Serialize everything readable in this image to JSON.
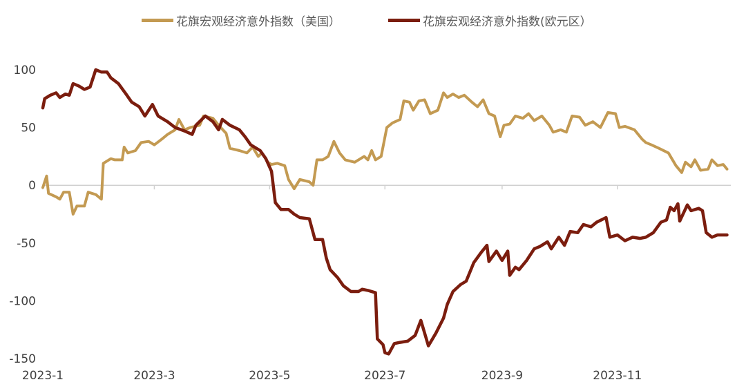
{
  "chart_data": {
    "type": "line",
    "title": "",
    "xlabel": "",
    "ylabel": "",
    "x_range": [
      "2023-01-01",
      "2023-12-31"
    ],
    "ylim": [
      -150,
      100
    ],
    "y_ticks": [
      100,
      50,
      0,
      -50,
      -100,
      -150
    ],
    "y_tick_labels": [
      "100",
      "50",
      "0",
      "-50",
      "-100",
      "-150"
    ],
    "x_ticks": [
      "2023-01-01",
      "2023-03-01",
      "2023-05-01",
      "2023-07-01",
      "2023-09-01",
      "2023-11-01"
    ],
    "x_tick_labels": [
      "2023-1",
      "2023-3",
      "2023-5",
      "2023-7",
      "2023-9",
      "2023-11"
    ],
    "grid": false,
    "legend_position": "top",
    "series": [
      {
        "name": "花旗宏观经济意外指数（美国）",
        "color": "#C39A52",
        "points": [
          [
            "2023-01-01",
            -2
          ],
          [
            "2023-01-03",
            8
          ],
          [
            "2023-01-04",
            -7
          ],
          [
            "2023-01-08",
            -10
          ],
          [
            "2023-01-10",
            -12
          ],
          [
            "2023-01-12",
            -6
          ],
          [
            "2023-01-15",
            -6
          ],
          [
            "2023-01-17",
            -25
          ],
          [
            "2023-01-19",
            -18
          ],
          [
            "2023-01-23",
            -18
          ],
          [
            "2023-01-25",
            -6
          ],
          [
            "2023-01-29",
            -8
          ],
          [
            "2023-02-01",
            -12
          ],
          [
            "2023-02-02",
            19
          ],
          [
            "2023-02-06",
            23
          ],
          [
            "2023-02-08",
            22
          ],
          [
            "2023-02-12",
            22
          ],
          [
            "2023-02-13",
            33
          ],
          [
            "2023-02-15",
            28
          ],
          [
            "2023-02-19",
            30
          ],
          [
            "2023-02-22",
            37
          ],
          [
            "2023-02-26",
            38
          ],
          [
            "2023-03-01",
            35
          ],
          [
            "2023-03-05",
            40
          ],
          [
            "2023-03-08",
            44
          ],
          [
            "2023-03-12",
            48
          ],
          [
            "2023-03-14",
            57
          ],
          [
            "2023-03-17",
            48
          ],
          [
            "2023-03-20",
            50
          ],
          [
            "2023-03-25",
            52
          ],
          [
            "2023-03-27",
            60
          ],
          [
            "2023-04-01",
            58
          ],
          [
            "2023-04-04",
            52
          ],
          [
            "2023-04-08",
            45
          ],
          [
            "2023-04-10",
            32
          ],
          [
            "2023-04-15",
            30
          ],
          [
            "2023-04-19",
            28
          ],
          [
            "2023-04-22",
            33
          ],
          [
            "2023-04-25",
            25
          ],
          [
            "2023-04-27",
            28
          ],
          [
            "2023-04-30",
            20
          ],
          [
            "2023-05-02",
            18
          ],
          [
            "2023-05-05",
            19
          ],
          [
            "2023-05-09",
            17
          ],
          [
            "2023-05-11",
            5
          ],
          [
            "2023-05-14",
            -3
          ],
          [
            "2023-05-17",
            5
          ],
          [
            "2023-05-22",
            3
          ],
          [
            "2023-05-24",
            0
          ],
          [
            "2023-05-26",
            22
          ],
          [
            "2023-05-29",
            22
          ],
          [
            "2023-06-01",
            25
          ],
          [
            "2023-06-04",
            38
          ],
          [
            "2023-06-07",
            28
          ],
          [
            "2023-06-10",
            22
          ],
          [
            "2023-06-15",
            20
          ],
          [
            "2023-06-20",
            25
          ],
          [
            "2023-06-22",
            22
          ],
          [
            "2023-06-24",
            30
          ],
          [
            "2023-06-26",
            22
          ],
          [
            "2023-06-29",
            25
          ],
          [
            "2023-07-02",
            50
          ],
          [
            "2023-07-05",
            54
          ],
          [
            "2023-07-09",
            57
          ],
          [
            "2023-07-11",
            73
          ],
          [
            "2023-07-14",
            72
          ],
          [
            "2023-07-16",
            65
          ],
          [
            "2023-07-19",
            73
          ],
          [
            "2023-07-22",
            74
          ],
          [
            "2023-07-25",
            62
          ],
          [
            "2023-07-29",
            65
          ],
          [
            "2023-08-01",
            80
          ],
          [
            "2023-08-03",
            76
          ],
          [
            "2023-08-06",
            79
          ],
          [
            "2023-08-09",
            76
          ],
          [
            "2023-08-12",
            78
          ],
          [
            "2023-08-16",
            72
          ],
          [
            "2023-08-19",
            68
          ],
          [
            "2023-08-22",
            74
          ],
          [
            "2023-08-25",
            62
          ],
          [
            "2023-08-28",
            60
          ],
          [
            "2023-08-31",
            42
          ],
          [
            "2023-09-02",
            52
          ],
          [
            "2023-09-05",
            53
          ],
          [
            "2023-09-08",
            60
          ],
          [
            "2023-09-12",
            58
          ],
          [
            "2023-09-15",
            62
          ],
          [
            "2023-09-18",
            56
          ],
          [
            "2023-09-22",
            60
          ],
          [
            "2023-09-26",
            52
          ],
          [
            "2023-09-28",
            46
          ],
          [
            "2023-10-02",
            48
          ],
          [
            "2023-10-05",
            46
          ],
          [
            "2023-10-08",
            60
          ],
          [
            "2023-10-12",
            59
          ],
          [
            "2023-10-15",
            52
          ],
          [
            "2023-10-19",
            55
          ],
          [
            "2023-10-23",
            50
          ],
          [
            "2023-10-27",
            63
          ],
          [
            "2023-10-31",
            62
          ],
          [
            "2023-11-02",
            50
          ],
          [
            "2023-11-05",
            51
          ],
          [
            "2023-11-10",
            48
          ],
          [
            "2023-11-14",
            40
          ],
          [
            "2023-11-16",
            37
          ],
          [
            "2023-11-19",
            35
          ],
          [
            "2023-11-23",
            32
          ],
          [
            "2023-11-28",
            28
          ],
          [
            "2023-12-02",
            17
          ],
          [
            "2023-12-05",
            11
          ],
          [
            "2023-12-07",
            20
          ],
          [
            "2023-12-10",
            16
          ],
          [
            "2023-12-12",
            22
          ],
          [
            "2023-12-15",
            13
          ],
          [
            "2023-12-19",
            14
          ],
          [
            "2023-12-21",
            22
          ],
          [
            "2023-12-24",
            17
          ],
          [
            "2023-12-27",
            18
          ],
          [
            "2023-12-29",
            14
          ]
        ]
      },
      {
        "name": "花旗宏观经济意外指数(欧元区）",
        "color": "#7B1D0E",
        "points": [
          [
            "2023-01-01",
            67
          ],
          [
            "2023-01-02",
            75
          ],
          [
            "2023-01-05",
            78
          ],
          [
            "2023-01-08",
            80
          ],
          [
            "2023-01-10",
            76
          ],
          [
            "2023-01-13",
            79
          ],
          [
            "2023-01-15",
            78
          ],
          [
            "2023-01-17",
            88
          ],
          [
            "2023-01-20",
            86
          ],
          [
            "2023-01-23",
            83
          ],
          [
            "2023-01-26",
            85
          ],
          [
            "2023-01-29",
            100
          ],
          [
            "2023-02-01",
            98
          ],
          [
            "2023-02-04",
            98
          ],
          [
            "2023-02-06",
            93
          ],
          [
            "2023-02-10",
            88
          ],
          [
            "2023-02-14",
            79
          ],
          [
            "2023-02-17",
            72
          ],
          [
            "2023-02-21",
            68
          ],
          [
            "2023-02-24",
            60
          ],
          [
            "2023-02-28",
            70
          ],
          [
            "2023-03-03",
            60
          ],
          [
            "2023-03-08",
            55
          ],
          [
            "2023-03-12",
            50
          ],
          [
            "2023-03-17",
            47
          ],
          [
            "2023-03-21",
            44
          ],
          [
            "2023-03-23",
            52
          ],
          [
            "2023-03-28",
            60
          ],
          [
            "2023-04-01",
            55
          ],
          [
            "2023-04-04",
            48
          ],
          [
            "2023-04-06",
            57
          ],
          [
            "2023-04-10",
            52
          ],
          [
            "2023-04-15",
            48
          ],
          [
            "2023-04-18",
            42
          ],
          [
            "2023-04-21",
            35
          ],
          [
            "2023-04-26",
            30
          ],
          [
            "2023-04-29",
            23
          ],
          [
            "2023-05-02",
            12
          ],
          [
            "2023-05-04",
            -15
          ],
          [
            "2023-05-07",
            -21
          ],
          [
            "2023-05-11",
            -21
          ],
          [
            "2023-05-14",
            -25
          ],
          [
            "2023-05-17",
            -28
          ],
          [
            "2023-05-22",
            -29
          ],
          [
            "2023-05-25",
            -47
          ],
          [
            "2023-05-29",
            -47
          ],
          [
            "2023-05-31",
            -63
          ],
          [
            "2023-06-02",
            -73
          ],
          [
            "2023-06-06",
            -80
          ],
          [
            "2023-06-09",
            -87
          ],
          [
            "2023-06-13",
            -92
          ],
          [
            "2023-06-17",
            -92
          ],
          [
            "2023-06-19",
            -90
          ],
          [
            "2023-06-22",
            -91
          ],
          [
            "2023-06-26",
            -93
          ],
          [
            "2023-06-27",
            -133
          ],
          [
            "2023-06-30",
            -138
          ],
          [
            "2023-07-01",
            -145
          ],
          [
            "2023-07-03",
            -146
          ],
          [
            "2023-07-06",
            -137
          ],
          [
            "2023-07-09",
            -136
          ],
          [
            "2023-07-13",
            -135
          ],
          [
            "2023-07-17",
            -130
          ],
          [
            "2023-07-20",
            -117
          ],
          [
            "2023-07-24",
            -139
          ],
          [
            "2023-07-28",
            -128
          ],
          [
            "2023-08-01",
            -115
          ],
          [
            "2023-08-03",
            -103
          ],
          [
            "2023-08-06",
            -92
          ],
          [
            "2023-08-10",
            -86
          ],
          [
            "2023-08-13",
            -83
          ],
          [
            "2023-08-15",
            -75
          ],
          [
            "2023-08-17",
            -67
          ],
          [
            "2023-08-21",
            -58
          ],
          [
            "2023-08-24",
            -52
          ],
          [
            "2023-08-25",
            -66
          ],
          [
            "2023-08-29",
            -57
          ],
          [
            "2023-09-01",
            -65
          ],
          [
            "2023-09-04",
            -57
          ],
          [
            "2023-09-05",
            -78
          ],
          [
            "2023-09-08",
            -71
          ],
          [
            "2023-09-10",
            -73
          ],
          [
            "2023-09-14",
            -65
          ],
          [
            "2023-09-18",
            -55
          ],
          [
            "2023-09-21",
            -53
          ],
          [
            "2023-09-25",
            -49
          ],
          [
            "2023-09-27",
            -55
          ],
          [
            "2023-10-01",
            -45
          ],
          [
            "2023-10-04",
            -52
          ],
          [
            "2023-10-07",
            -40
          ],
          [
            "2023-10-11",
            -41
          ],
          [
            "2023-10-14",
            -34
          ],
          [
            "2023-10-18",
            -36
          ],
          [
            "2023-10-21",
            -32
          ],
          [
            "2023-10-26",
            -28
          ],
          [
            "2023-10-28",
            -45
          ],
          [
            "2023-11-01",
            -43
          ],
          [
            "2023-11-05",
            -48
          ],
          [
            "2023-11-09",
            -45
          ],
          [
            "2023-11-13",
            -46
          ],
          [
            "2023-11-16",
            -45
          ],
          [
            "2023-11-20",
            -41
          ],
          [
            "2023-11-24",
            -32
          ],
          [
            "2023-11-27",
            -30
          ],
          [
            "2023-11-29",
            -19
          ],
          [
            "2023-12-01",
            -22
          ],
          [
            "2023-12-03",
            -16
          ],
          [
            "2023-12-04",
            -31
          ],
          [
            "2023-12-08",
            -17
          ],
          [
            "2023-12-10",
            -22
          ],
          [
            "2023-12-14",
            -20
          ],
          [
            "2023-12-16",
            -22
          ],
          [
            "2023-12-18",
            -41
          ],
          [
            "2023-12-21",
            -45
          ],
          [
            "2023-12-24",
            -43
          ],
          [
            "2023-12-29",
            -43
          ]
        ]
      }
    ]
  }
}
